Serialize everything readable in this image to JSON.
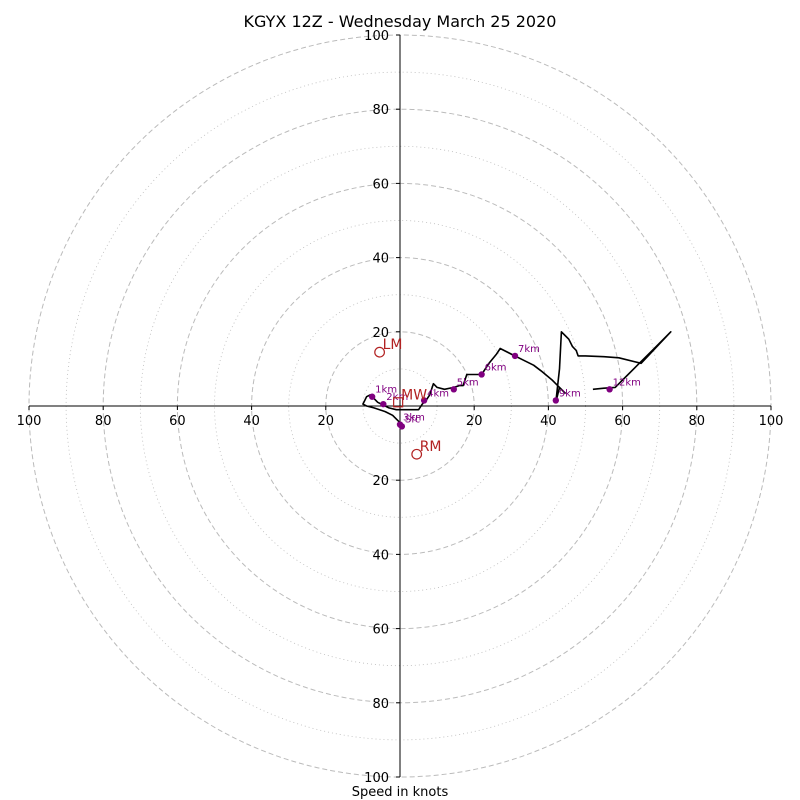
{
  "chart_data": {
    "type": "hodograph",
    "title": "KGYX 12Z - Wednesday March 25 2020",
    "xlabel": "Speed in knots",
    "ylabel": "",
    "units": "knots",
    "range": [
      -100,
      100
    ],
    "rings_major": [
      20,
      40,
      60,
      80,
      100
    ],
    "rings_minor": [
      10,
      30,
      50,
      70,
      90
    ],
    "grid": true,
    "tick_labels": {
      "x": [
        {
          "value": -100,
          "label": "100"
        },
        {
          "value": -80,
          "label": "80"
        },
        {
          "value": -60,
          "label": "60"
        },
        {
          "value": -40,
          "label": "40"
        },
        {
          "value": -20,
          "label": "20"
        },
        {
          "value": 20,
          "label": "20"
        },
        {
          "value": 40,
          "label": "40"
        },
        {
          "value": 60,
          "label": "60"
        },
        {
          "value": 80,
          "label": "80"
        },
        {
          "value": 100,
          "label": "100"
        }
      ],
      "y": [
        {
          "value": 100,
          "label": "100"
        },
        {
          "value": 80,
          "label": "80"
        },
        {
          "value": 60,
          "label": "60"
        },
        {
          "value": 40,
          "label": "40"
        },
        {
          "value": 20,
          "label": "20"
        },
        {
          "value": -20,
          "label": "20"
        },
        {
          "value": -40,
          "label": "40"
        },
        {
          "value": -60,
          "label": "60"
        },
        {
          "value": -80,
          "label": "80"
        },
        {
          "value": -100,
          "label": "100"
        }
      ]
    },
    "trace": [
      [
        0.5,
        -5.5
      ],
      [
        0.0,
        -4.5
      ],
      [
        -2.0,
        -2.5
      ],
      [
        -4.0,
        -1.5
      ],
      [
        -7.0,
        -0.5
      ],
      [
        -9.0,
        0.0
      ],
      [
        -10.0,
        0.5
      ],
      [
        -9.5,
        1.5
      ],
      [
        -9.0,
        2.5
      ],
      [
        -8.0,
        3.0
      ],
      [
        -7.5,
        2.5
      ],
      [
        -6.0,
        1.0
      ],
      [
        -5.0,
        0.5
      ],
      [
        -4.0,
        0.0
      ],
      [
        -3.0,
        -0.5
      ],
      [
        -1.0,
        -1.0
      ],
      [
        1.0,
        -1.0
      ],
      [
        3.0,
        -1.0
      ],
      [
        5.0,
        -1.0
      ],
      [
        6.0,
        0.5
      ],
      [
        7.0,
        1.5
      ],
      [
        8.0,
        3.0
      ],
      [
        9.0,
        6.0
      ],
      [
        10.0,
        5.0
      ],
      [
        12.0,
        4.5
      ],
      [
        14.5,
        5.0
      ],
      [
        16.0,
        5.5
      ],
      [
        17.0,
        5.5
      ],
      [
        18.0,
        8.5
      ],
      [
        20.0,
        8.5
      ],
      [
        22.0,
        8.5
      ],
      [
        24.0,
        11.5
      ],
      [
        26.0,
        14.0
      ],
      [
        27.0,
        15.5
      ],
      [
        30.0,
        14.0
      ],
      [
        32.0,
        13.0
      ],
      [
        36.0,
        11.0
      ],
      [
        38.0,
        9.5
      ],
      [
        41.0,
        7.0
      ],
      [
        43.0,
        5.0
      ],
      [
        44.5,
        3.5
      ],
      [
        43.0,
        5.0
      ],
      [
        42.0,
        1.0
      ],
      [
        43.0,
        10.0
      ],
      [
        43.5,
        20.0
      ],
      [
        44.5,
        19.0
      ],
      [
        45.5,
        18.0
      ],
      [
        46.5,
        16.0
      ],
      [
        47.5,
        15.0
      ],
      [
        48.0,
        13.5
      ],
      [
        48.5,
        13.5
      ],
      [
        50.0,
        13.5
      ],
      [
        55.0,
        13.3
      ],
      [
        59.0,
        13.0
      ],
      [
        65.0,
        11.5
      ],
      [
        73.0,
        20.0
      ],
      [
        68.0,
        15.0
      ],
      [
        64.0,
        11.0
      ],
      [
        60.0,
        7.0
      ],
      [
        58.0,
        5.0
      ],
      [
        55.0,
        4.8
      ],
      [
        52.0,
        4.5
      ]
    ],
    "height_points": [
      {
        "label": "Sfc",
        "u": 0.5,
        "v": -5.5
      },
      {
        "label": "1km",
        "u": -7.5,
        "v": 2.5
      },
      {
        "label": "2km",
        "u": -4.5,
        "v": 0.5
      },
      {
        "label": "3km",
        "u": 0.0,
        "v": -5.0
      },
      {
        "label": "4km",
        "u": 6.5,
        "v": 1.5
      },
      {
        "label": "5km",
        "u": 14.5,
        "v": 4.5
      },
      {
        "label": "6km",
        "u": 22.0,
        "v": 8.5
      },
      {
        "label": "7km",
        "u": 31.0,
        "v": 13.5
      },
      {
        "label": "9km",
        "u": 42.0,
        "v": 1.5
      },
      {
        "label": "12km",
        "u": 56.5,
        "v": 4.5
      }
    ],
    "storm_motion": [
      {
        "label": "LM",
        "u": -5.5,
        "v": 14.5
      },
      {
        "label": "RM",
        "u": 4.5,
        "v": -13.0
      },
      {
        "label": "MW",
        "u": -0.5,
        "v": 1.0
      }
    ],
    "colors": {
      "trace": "#000000",
      "height_points": "#800080",
      "storm_motion": "#b22222",
      "grid": "#bbbbbb"
    }
  }
}
